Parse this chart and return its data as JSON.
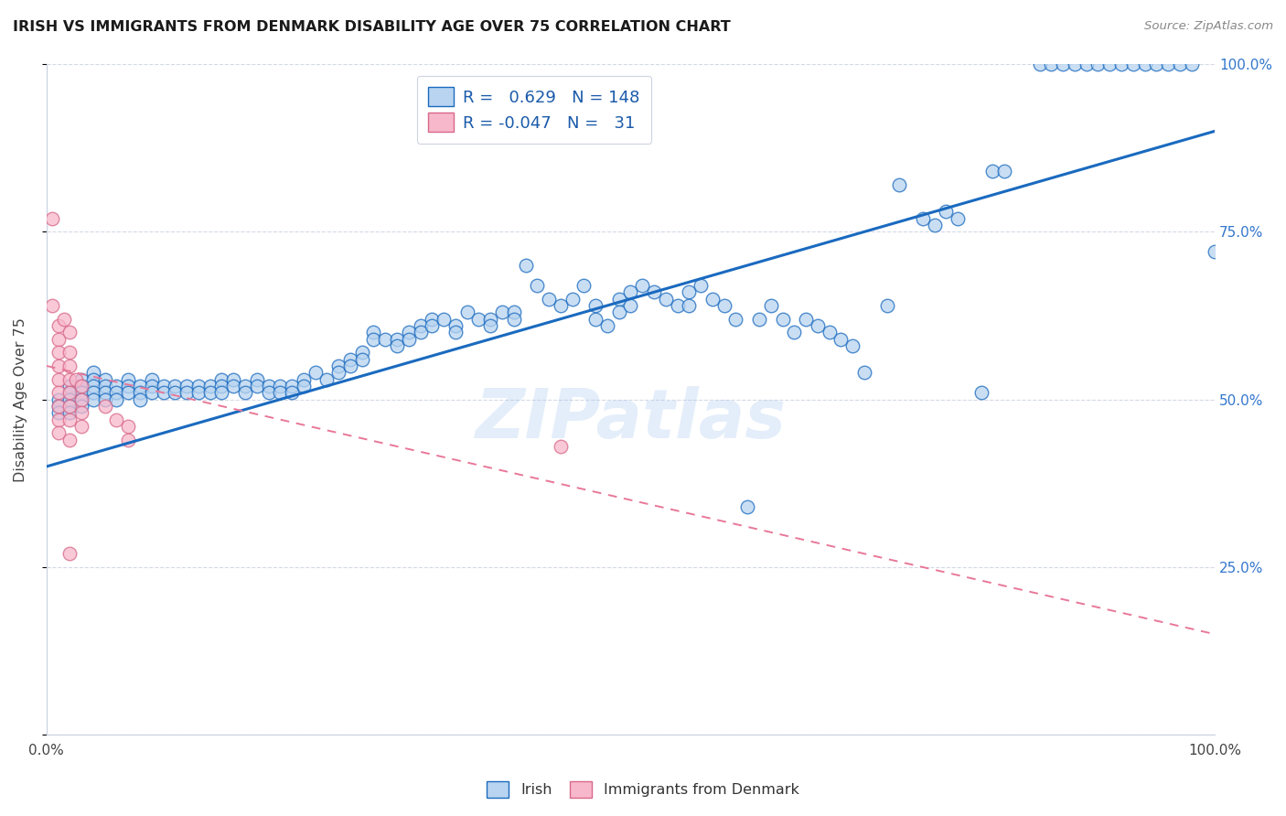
{
  "title": "IRISH VS IMMIGRANTS FROM DENMARK DISABILITY AGE OVER 75 CORRELATION CHART",
  "source": "Source: ZipAtlas.com",
  "ylabel": "Disability Age Over 75",
  "watermark": "ZIPatlas",
  "xlim": [
    0.0,
    1.0
  ],
  "ylim": [
    0.0,
    1.0
  ],
  "irish_R": 0.629,
  "irish_N": 148,
  "denmark_R": -0.047,
  "denmark_N": 31,
  "irish_color": "#b8d4f0",
  "danish_color": "#f8b8cc",
  "irish_line_color": "#1a6abf",
  "danish_line_color": "#e87898",
  "irish_trend": [
    0.4,
    0.9
  ],
  "danish_trend": [
    0.55,
    0.15
  ],
  "irish_scatter": [
    [
      0.01,
      0.5
    ],
    [
      0.01,
      0.49
    ],
    [
      0.01,
      0.48
    ],
    [
      0.02,
      0.52
    ],
    [
      0.02,
      0.51
    ],
    [
      0.02,
      0.5
    ],
    [
      0.02,
      0.49
    ],
    [
      0.02,
      0.48
    ],
    [
      0.03,
      0.53
    ],
    [
      0.03,
      0.52
    ],
    [
      0.03,
      0.51
    ],
    [
      0.03,
      0.5
    ],
    [
      0.03,
      0.49
    ],
    [
      0.04,
      0.54
    ],
    [
      0.04,
      0.53
    ],
    [
      0.04,
      0.52
    ],
    [
      0.04,
      0.51
    ],
    [
      0.04,
      0.5
    ],
    [
      0.05,
      0.53
    ],
    [
      0.05,
      0.52
    ],
    [
      0.05,
      0.51
    ],
    [
      0.05,
      0.5
    ],
    [
      0.06,
      0.52
    ],
    [
      0.06,
      0.51
    ],
    [
      0.06,
      0.5
    ],
    [
      0.07,
      0.53
    ],
    [
      0.07,
      0.52
    ],
    [
      0.07,
      0.51
    ],
    [
      0.08,
      0.52
    ],
    [
      0.08,
      0.51
    ],
    [
      0.08,
      0.5
    ],
    [
      0.09,
      0.53
    ],
    [
      0.09,
      0.52
    ],
    [
      0.09,
      0.51
    ],
    [
      0.1,
      0.52
    ],
    [
      0.1,
      0.51
    ],
    [
      0.11,
      0.52
    ],
    [
      0.11,
      0.51
    ],
    [
      0.12,
      0.52
    ],
    [
      0.12,
      0.51
    ],
    [
      0.13,
      0.52
    ],
    [
      0.13,
      0.51
    ],
    [
      0.14,
      0.52
    ],
    [
      0.14,
      0.51
    ],
    [
      0.15,
      0.53
    ],
    [
      0.15,
      0.52
    ],
    [
      0.15,
      0.51
    ],
    [
      0.16,
      0.53
    ],
    [
      0.16,
      0.52
    ],
    [
      0.17,
      0.52
    ],
    [
      0.17,
      0.51
    ],
    [
      0.18,
      0.53
    ],
    [
      0.18,
      0.52
    ],
    [
      0.19,
      0.52
    ],
    [
      0.19,
      0.51
    ],
    [
      0.2,
      0.52
    ],
    [
      0.2,
      0.51
    ],
    [
      0.21,
      0.52
    ],
    [
      0.21,
      0.51
    ],
    [
      0.22,
      0.53
    ],
    [
      0.22,
      0.52
    ],
    [
      0.23,
      0.54
    ],
    [
      0.24,
      0.53
    ],
    [
      0.25,
      0.55
    ],
    [
      0.25,
      0.54
    ],
    [
      0.26,
      0.56
    ],
    [
      0.26,
      0.55
    ],
    [
      0.27,
      0.57
    ],
    [
      0.27,
      0.56
    ],
    [
      0.28,
      0.6
    ],
    [
      0.28,
      0.59
    ],
    [
      0.29,
      0.59
    ],
    [
      0.3,
      0.59
    ],
    [
      0.3,
      0.58
    ],
    [
      0.31,
      0.6
    ],
    [
      0.31,
      0.59
    ],
    [
      0.32,
      0.61
    ],
    [
      0.32,
      0.6
    ],
    [
      0.33,
      0.62
    ],
    [
      0.33,
      0.61
    ],
    [
      0.34,
      0.62
    ],
    [
      0.35,
      0.61
    ],
    [
      0.35,
      0.6
    ],
    [
      0.36,
      0.63
    ],
    [
      0.37,
      0.62
    ],
    [
      0.38,
      0.62
    ],
    [
      0.38,
      0.61
    ],
    [
      0.39,
      0.63
    ],
    [
      0.4,
      0.63
    ],
    [
      0.4,
      0.62
    ],
    [
      0.41,
      0.7
    ],
    [
      0.42,
      0.67
    ],
    [
      0.43,
      0.65
    ],
    [
      0.44,
      0.64
    ],
    [
      0.45,
      0.65
    ],
    [
      0.46,
      0.67
    ],
    [
      0.47,
      0.64
    ],
    [
      0.47,
      0.62
    ],
    [
      0.48,
      0.61
    ],
    [
      0.49,
      0.65
    ],
    [
      0.49,
      0.63
    ],
    [
      0.5,
      0.66
    ],
    [
      0.5,
      0.64
    ],
    [
      0.51,
      0.67
    ],
    [
      0.52,
      0.66
    ],
    [
      0.53,
      0.65
    ],
    [
      0.54,
      0.64
    ],
    [
      0.55,
      0.66
    ],
    [
      0.55,
      0.64
    ],
    [
      0.56,
      0.67
    ],
    [
      0.57,
      0.65
    ],
    [
      0.58,
      0.64
    ],
    [
      0.59,
      0.62
    ],
    [
      0.6,
      0.34
    ],
    [
      0.61,
      0.62
    ],
    [
      0.62,
      0.64
    ],
    [
      0.63,
      0.62
    ],
    [
      0.64,
      0.6
    ],
    [
      0.65,
      0.62
    ],
    [
      0.66,
      0.61
    ],
    [
      0.67,
      0.6
    ],
    [
      0.68,
      0.59
    ],
    [
      0.69,
      0.58
    ],
    [
      0.7,
      0.54
    ],
    [
      0.72,
      0.64
    ],
    [
      0.73,
      0.82
    ],
    [
      0.75,
      0.77
    ],
    [
      0.76,
      0.76
    ],
    [
      0.77,
      0.78
    ],
    [
      0.78,
      0.77
    ],
    [
      0.8,
      0.51
    ],
    [
      0.81,
      0.84
    ],
    [
      0.82,
      0.84
    ],
    [
      0.85,
      1.0
    ],
    [
      0.86,
      1.0
    ],
    [
      0.87,
      1.0
    ],
    [
      0.88,
      1.0
    ],
    [
      0.89,
      1.0
    ],
    [
      0.9,
      1.0
    ],
    [
      0.91,
      1.0
    ],
    [
      0.92,
      1.0
    ],
    [
      0.93,
      1.0
    ],
    [
      0.94,
      1.0
    ],
    [
      0.95,
      1.0
    ],
    [
      0.96,
      1.0
    ],
    [
      0.97,
      1.0
    ],
    [
      0.98,
      1.0
    ],
    [
      1.0,
      0.72
    ]
  ],
  "danish_scatter": [
    [
      0.005,
      0.77
    ],
    [
      0.005,
      0.64
    ],
    [
      0.01,
      0.61
    ],
    [
      0.01,
      0.59
    ],
    [
      0.01,
      0.57
    ],
    [
      0.01,
      0.55
    ],
    [
      0.01,
      0.53
    ],
    [
      0.01,
      0.51
    ],
    [
      0.01,
      0.49
    ],
    [
      0.01,
      0.47
    ],
    [
      0.01,
      0.45
    ],
    [
      0.015,
      0.62
    ],
    [
      0.02,
      0.6
    ],
    [
      0.02,
      0.57
    ],
    [
      0.02,
      0.55
    ],
    [
      0.02,
      0.53
    ],
    [
      0.02,
      0.51
    ],
    [
      0.02,
      0.49
    ],
    [
      0.02,
      0.47
    ],
    [
      0.02,
      0.44
    ],
    [
      0.02,
      0.27
    ],
    [
      0.025,
      0.53
    ],
    [
      0.03,
      0.52
    ],
    [
      0.03,
      0.5
    ],
    [
      0.03,
      0.48
    ],
    [
      0.03,
      0.46
    ],
    [
      0.05,
      0.49
    ],
    [
      0.06,
      0.47
    ],
    [
      0.07,
      0.46
    ],
    [
      0.07,
      0.44
    ],
    [
      0.44,
      0.43
    ]
  ]
}
